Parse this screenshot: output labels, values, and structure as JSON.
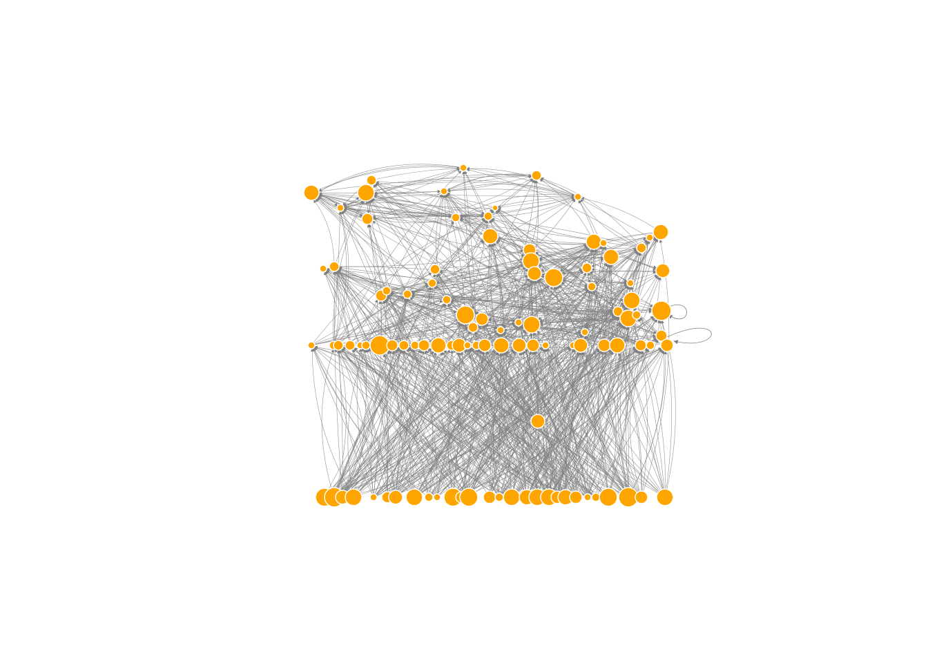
{
  "diagram": {
    "type": "directed-network",
    "node_color": "#FFA500",
    "node_border": "#FFFFFF",
    "edge_color": "#808080",
    "background": "#FFFFFF"
  }
}
